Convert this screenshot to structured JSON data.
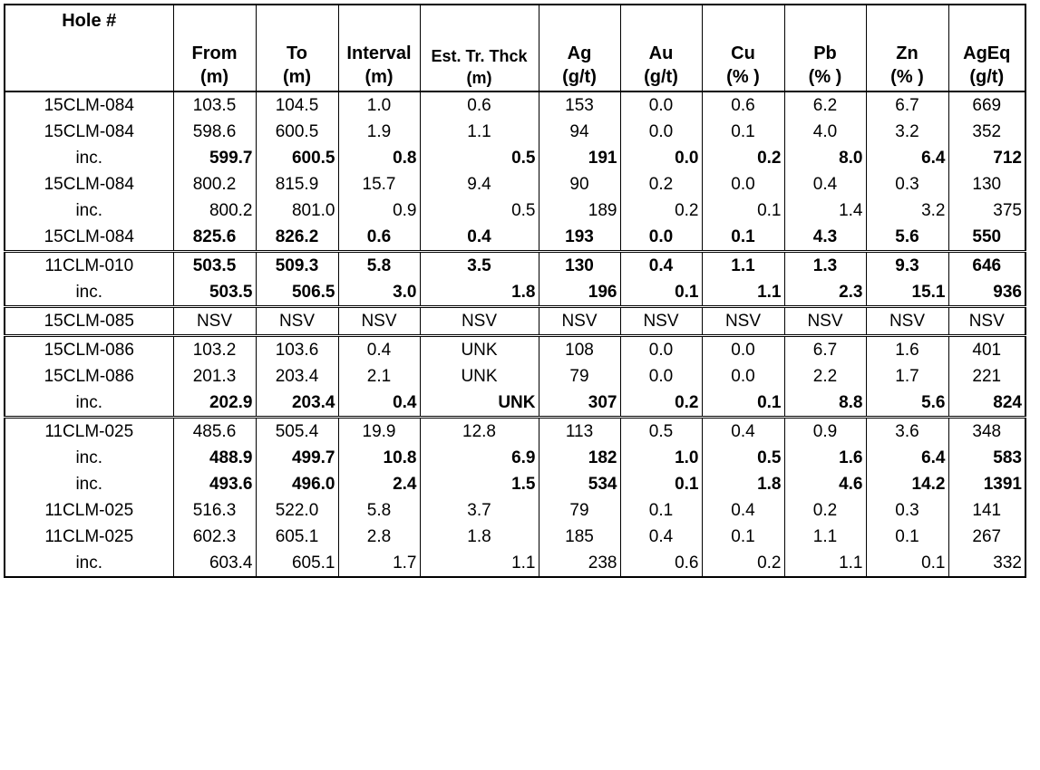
{
  "headers": [
    {
      "l1": "Hole #",
      "l2": ""
    },
    {
      "l1": "From",
      "l2": "(m)"
    },
    {
      "l1": "To",
      "l2": "(m)"
    },
    {
      "l1": "Interval",
      "l2": "(m)"
    },
    {
      "l1": "Est. Tr. Thck",
      "l2": "(m)"
    },
    {
      "l1": "Ag",
      "l2": "(g/t)"
    },
    {
      "l1": "Au",
      "l2": "(g/t)"
    },
    {
      "l1": "Cu",
      "l2": "(% )"
    },
    {
      "l1": "Pb",
      "l2": "(% )"
    },
    {
      "l1": "Zn",
      "l2": "(% )"
    },
    {
      "l1": "AgEq",
      "l2": "(g/t)"
    }
  ],
  "rows": [
    {
      "hole": "15CLM-084",
      "v": [
        "103.5",
        "104.5",
        "1.0",
        "0.6",
        "153",
        "0.0",
        "0.6",
        "6.2",
        "6.7",
        "669"
      ]
    },
    {
      "hole": "15CLM-084",
      "v": [
        "598.6",
        "600.5",
        "1.9",
        "1.1",
        "94",
        "0.0",
        "0.1",
        "4.0",
        "3.2",
        "352"
      ]
    },
    {
      "hole": "inc.",
      "v": [
        "599.7",
        "600.5",
        "0.8",
        "0.5",
        "191",
        "0.0",
        "0.2",
        "8.0",
        "6.4",
        "712"
      ]
    },
    {
      "hole": "15CLM-084",
      "v": [
        "800.2",
        "815.9",
        "15.7",
        "9.4",
        "90",
        "0.2",
        "0.0",
        "0.4",
        "0.3",
        "130"
      ]
    },
    {
      "hole": "inc.",
      "v": [
        "800.2",
        "801.0",
        "0.9",
        "0.5",
        "189",
        "0.2",
        "0.1",
        "1.4",
        "3.2",
        "375"
      ]
    },
    {
      "hole": "15CLM-084",
      "v": [
        "825.6",
        "826.2",
        "0.6",
        "0.4",
        "193",
        "0.0",
        "0.1",
        "4.3",
        "5.6",
        "550"
      ]
    },
    {
      "hole": "11CLM-010",
      "v": [
        "503.5",
        "509.3",
        "5.8",
        "3.5",
        "130",
        "0.4",
        "1.1",
        "1.3",
        "9.3",
        "646"
      ]
    },
    {
      "hole": "inc.",
      "v": [
        "503.5",
        "506.5",
        "3.0",
        "1.8",
        "196",
        "0.1",
        "1.1",
        "2.3",
        "15.1",
        "936"
      ]
    },
    {
      "hole": "15CLM-085",
      "v": [
        "NSV",
        "NSV",
        "NSV",
        "NSV",
        "NSV",
        "NSV",
        "NSV",
        "NSV",
        "NSV",
        "NSV"
      ]
    },
    {
      "hole": "15CLM-086",
      "v": [
        "103.2",
        "103.6",
        "0.4",
        "UNK",
        "108",
        "0.0",
        "0.0",
        "6.7",
        "1.6",
        "401"
      ]
    },
    {
      "hole": "15CLM-086",
      "v": [
        "201.3",
        "203.4",
        "2.1",
        "UNK",
        "79",
        "0.0",
        "0.0",
        "2.2",
        "1.7",
        "221"
      ]
    },
    {
      "hole": "inc.",
      "v": [
        "202.9",
        "203.4",
        "0.4",
        "UNK",
        "307",
        "0.2",
        "0.1",
        "8.8",
        "5.6",
        "824"
      ]
    },
    {
      "hole": "11CLM-025",
      "v": [
        "485.6",
        "505.4",
        "19.9",
        "12.8",
        "113",
        "0.5",
        "0.4",
        "0.9",
        "3.6",
        "348"
      ]
    },
    {
      "hole": "inc.",
      "v": [
        "488.9",
        "499.7",
        "10.8",
        "6.9",
        "182",
        "1.0",
        "0.5",
        "1.6",
        "6.4",
        "583"
      ]
    },
    {
      "hole": "inc.",
      "v": [
        "493.6",
        "496.0",
        "2.4",
        "1.5",
        "534",
        "0.1",
        "1.8",
        "4.6",
        "14.2",
        "1391"
      ]
    },
    {
      "hole": "11CLM-025",
      "v": [
        "516.3",
        "522.0",
        "5.8",
        "3.7",
        "79",
        "0.1",
        "0.4",
        "0.2",
        "0.3",
        "141"
      ]
    },
    {
      "hole": "11CLM-025",
      "v": [
        "602.3",
        "605.1",
        "2.8",
        "1.8",
        "185",
        "0.4",
        "0.1",
        "1.1",
        "0.1",
        "267"
      ]
    },
    {
      "hole": "inc.",
      "v": [
        "603.4",
        "605.1",
        "1.7",
        "1.1",
        "238",
        "0.6",
        "0.2",
        "1.1",
        "0.1",
        "332"
      ]
    }
  ]
}
